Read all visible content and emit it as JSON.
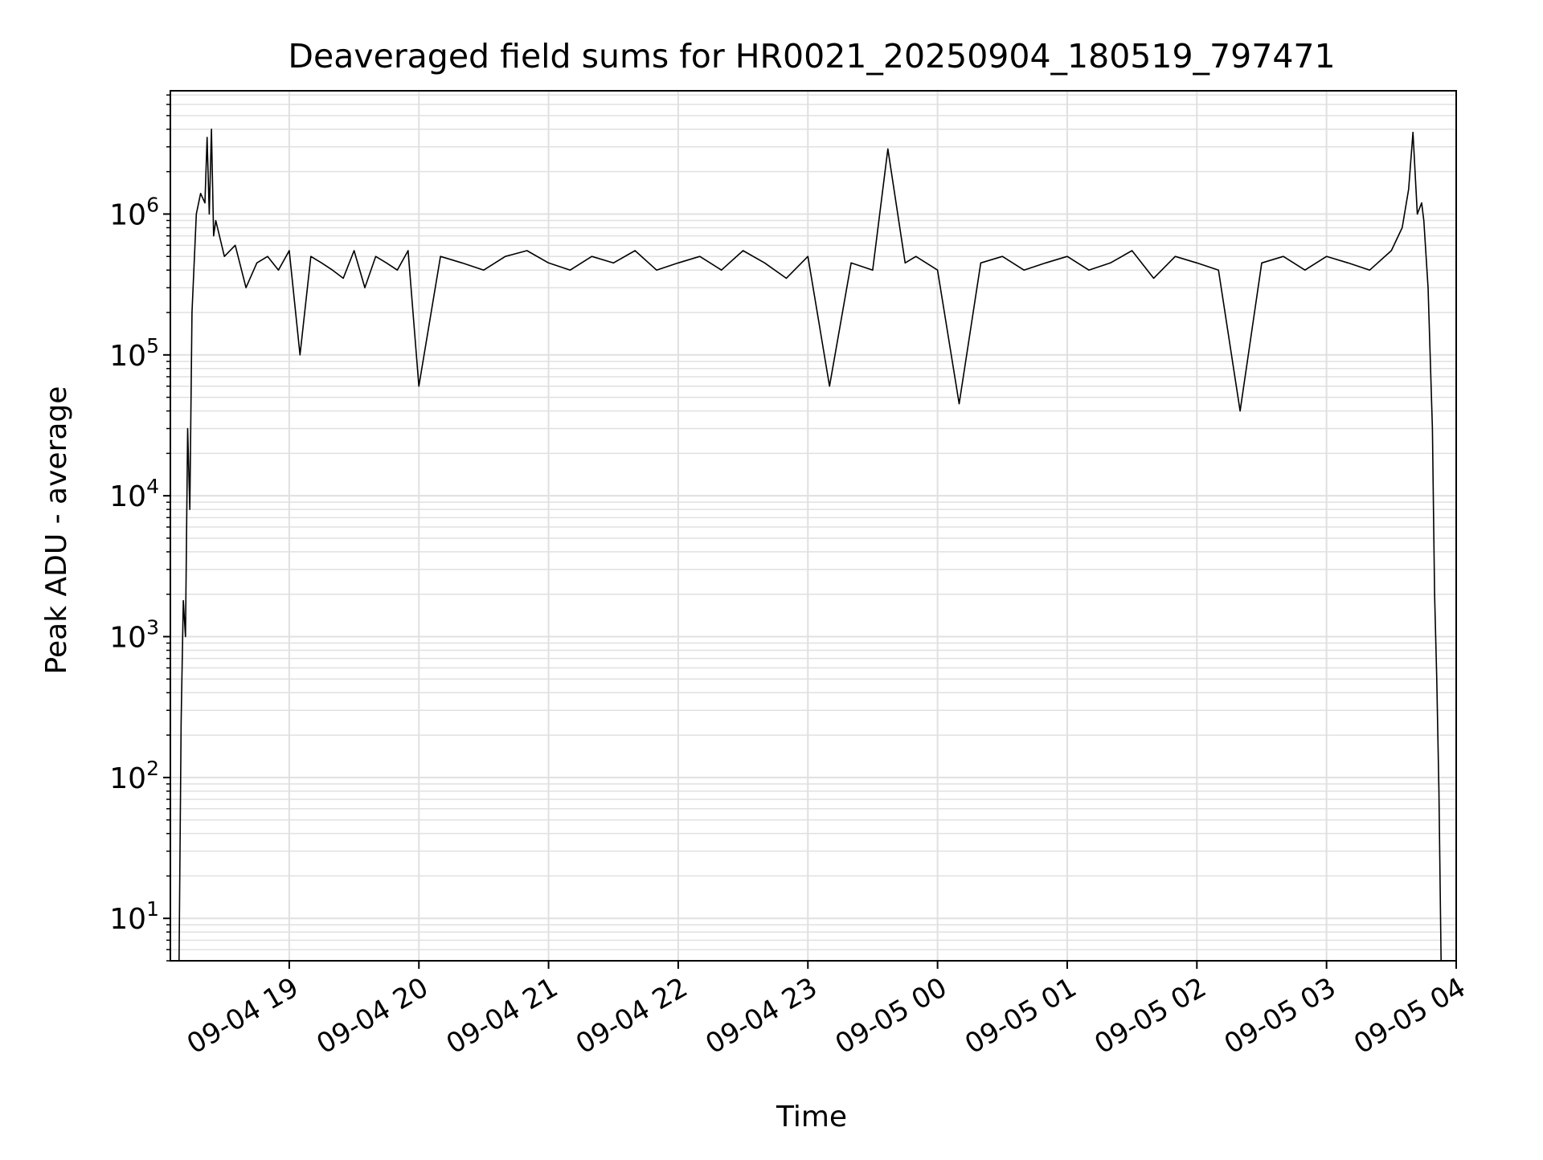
{
  "chart_data": {
    "type": "line",
    "title": "Deaveraged field sums for HR0021_20250904_180519_797471",
    "xlabel": "Time",
    "ylabel": "Peak ADU - average",
    "xlim": [
      "2025-09-04 18:05",
      "2025-09-05 04:00"
    ],
    "ylim": [
      5,
      7500000
    ],
    "yscale": "log",
    "grid": true,
    "legend": null,
    "line_color": "#000000",
    "grid_color": "#e0e0e0",
    "x_ticks": [
      {
        "value": "2025-09-04 19:00",
        "label": "09-04 19"
      },
      {
        "value": "2025-09-04 20:00",
        "label": "09-04 20"
      },
      {
        "value": "2025-09-04 21:00",
        "label": "09-04 21"
      },
      {
        "value": "2025-09-04 22:00",
        "label": "09-04 22"
      },
      {
        "value": "2025-09-04 23:00",
        "label": "09-04 23"
      },
      {
        "value": "2025-09-05 00:00",
        "label": "09-05 00"
      },
      {
        "value": "2025-09-05 01:00",
        "label": "09-05 01"
      },
      {
        "value": "2025-09-05 02:00",
        "label": "09-05 02"
      },
      {
        "value": "2025-09-05 03:00",
        "label": "09-05 03"
      },
      {
        "value": "2025-09-05 04:00",
        "label": "09-05 04"
      }
    ],
    "y_ticks": [
      {
        "value": 10,
        "base": "10",
        "exp": "1"
      },
      {
        "value": 100,
        "base": "10",
        "exp": "2"
      },
      {
        "value": 1000,
        "base": "10",
        "exp": "3"
      },
      {
        "value": 10000,
        "base": "10",
        "exp": "4"
      },
      {
        "value": 100000,
        "base": "10",
        "exp": "5"
      },
      {
        "value": 1000000,
        "base": "10",
        "exp": "6"
      }
    ],
    "series": [
      {
        "x": [
          "2025-09-04 18:09",
          "2025-09-04 18:10",
          "2025-09-04 18:11",
          "2025-09-04 18:12",
          "2025-09-04 18:13",
          "2025-09-04 18:14",
          "2025-09-04 18:15",
          "2025-09-04 18:17",
          "2025-09-04 18:19",
          "2025-09-04 18:21",
          "2025-09-04 18:22",
          "2025-09-04 18:23",
          "2025-09-04 18:24",
          "2025-09-04 18:25",
          "2025-09-04 18:26",
          "2025-09-04 18:30",
          "2025-09-04 18:35",
          "2025-09-04 18:40",
          "2025-09-04 18:45",
          "2025-09-04 18:50",
          "2025-09-04 18:55",
          "2025-09-04 19:00",
          "2025-09-04 19:05",
          "2025-09-04 19:10",
          "2025-09-04 19:15",
          "2025-09-04 19:20",
          "2025-09-04 19:25",
          "2025-09-04 19:30",
          "2025-09-04 19:35",
          "2025-09-04 19:40",
          "2025-09-04 19:45",
          "2025-09-04 19:50",
          "2025-09-04 19:55",
          "2025-09-04 20:00",
          "2025-09-04 20:10",
          "2025-09-04 20:20",
          "2025-09-04 20:30",
          "2025-09-04 20:40",
          "2025-09-04 20:50",
          "2025-09-04 21:00",
          "2025-09-04 21:10",
          "2025-09-04 21:20",
          "2025-09-04 21:30",
          "2025-09-04 21:40",
          "2025-09-04 21:50",
          "2025-09-04 22:00",
          "2025-09-04 22:10",
          "2025-09-04 22:20",
          "2025-09-04 22:30",
          "2025-09-04 22:40",
          "2025-09-04 22:50",
          "2025-09-04 23:00",
          "2025-09-04 23:10",
          "2025-09-04 23:20",
          "2025-09-04 23:30",
          "2025-09-04 23:37",
          "2025-09-04 23:45",
          "2025-09-04 23:50",
          "2025-09-05 00:00",
          "2025-09-05 00:10",
          "2025-09-05 00:20",
          "2025-09-05 00:30",
          "2025-09-05 00:40",
          "2025-09-05 00:50",
          "2025-09-05 01:00",
          "2025-09-05 01:10",
          "2025-09-05 01:20",
          "2025-09-05 01:30",
          "2025-09-05 01:40",
          "2025-09-05 01:50",
          "2025-09-05 02:00",
          "2025-09-05 02:10",
          "2025-09-05 02:20",
          "2025-09-05 02:30",
          "2025-09-05 02:40",
          "2025-09-05 02:50",
          "2025-09-05 03:00",
          "2025-09-05 03:10",
          "2025-09-05 03:20",
          "2025-09-05 03:30",
          "2025-09-05 03:35",
          "2025-09-05 03:38",
          "2025-09-05 03:40",
          "2025-09-05 03:42",
          "2025-09-05 03:44",
          "2025-09-05 03:45",
          "2025-09-05 03:47",
          "2025-09-05 03:49",
          "2025-09-05 03:50",
          "2025-09-05 03:51",
          "2025-09-05 03:52",
          "2025-09-05 03:53"
        ],
        "y": [
          5,
          250,
          1800,
          1000,
          30000,
          8000,
          200000,
          1000000,
          1400000,
          1200000,
          3500000,
          1000000,
          4000000,
          700000,
          900000,
          500000,
          600000,
          300000,
          450000,
          500000,
          400000,
          550000,
          100000,
          500000,
          450000,
          400000,
          350000,
          550000,
          300000,
          500000,
          450000,
          400000,
          550000,
          60000,
          500000,
          450000,
          400000,
          500000,
          550000,
          450000,
          400000,
          500000,
          450000,
          550000,
          400000,
          450000,
          500000,
          400000,
          550000,
          450000,
          350000,
          500000,
          60000,
          450000,
          400000,
          2900000,
          450000,
          500000,
          400000,
          45000,
          450000,
          500000,
          400000,
          450000,
          500000,
          400000,
          450000,
          550000,
          350000,
          500000,
          450000,
          400000,
          40000,
          450000,
          500000,
          400000,
          500000,
          450000,
          400000,
          550000,
          800000,
          1500000,
          3800000,
          1000000,
          1200000,
          900000,
          300000,
          30000,
          2000,
          500,
          80,
          5
        ]
      }
    ]
  }
}
